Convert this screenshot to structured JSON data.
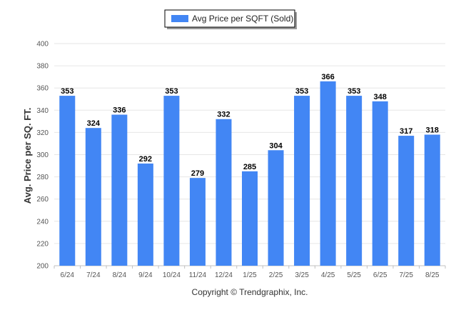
{
  "chart_data": {
    "type": "bar",
    "categories": [
      "6/24",
      "7/24",
      "8/24",
      "9/24",
      "10/24",
      "11/24",
      "12/24",
      "1/25",
      "2/25",
      "3/25",
      "4/25",
      "5/25",
      "6/25",
      "7/25",
      "8/25"
    ],
    "series": [
      {
        "name": "Avg Price per SQFT (Sold)",
        "values": [
          353,
          324,
          336,
          292,
          353,
          279,
          332,
          285,
          304,
          353,
          366,
          353,
          348,
          317,
          318
        ],
        "color": "#4286f4"
      }
    ],
    "title": "",
    "xlabel": "",
    "ylabel": "Avg. Price per SQ. FT.",
    "ylim": [
      200,
      400
    ],
    "yticks": [
      200,
      220,
      240,
      260,
      280,
      300,
      320,
      340,
      360,
      380,
      400
    ],
    "grid": true,
    "legend_position": "top-center",
    "data_labels": true
  },
  "footer": {
    "copyright": "Copyright © Trendgraphix, Inc."
  }
}
